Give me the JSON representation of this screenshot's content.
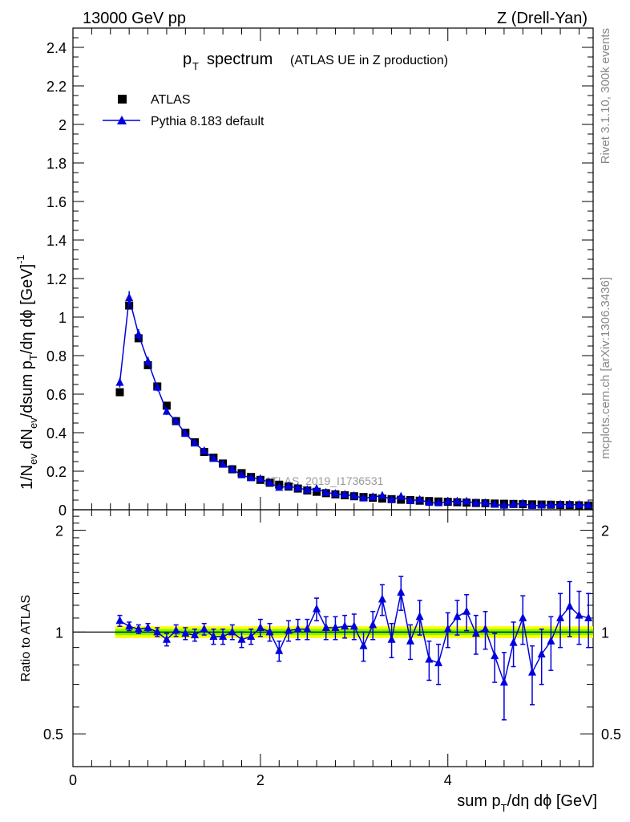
{
  "header": {
    "left": "13000 GeV pp",
    "right": "Z (Drell-Yan)"
  },
  "side_labels": {
    "rivet": "Rivet 3.1.10,  300k events",
    "mcplots": "mcplots.cern.ch [arXiv:1306.3436]"
  },
  "watermark": "ATLAS_2019_I1736531",
  "chart_data": [
    {
      "type": "scatter",
      "panel": "main",
      "title_main": "p",
      "title_sub": "T",
      "title_rest": "spectrum",
      "title_note": "(ATLAS UE in Z production)",
      "xlabel": "sum p_T/dη dϕ [GeV]",
      "ylabel": "1/N_ev dN_ev/dsum p_T/dη dϕ [GeV]^-1",
      "xlim": [
        0,
        5.55
      ],
      "ylim": [
        0,
        2.5
      ],
      "yticks": [
        "0",
        "0.2",
        "0.4",
        "0.6",
        "0.8",
        "1",
        "1.2",
        "1.4",
        "1.6",
        "1.8",
        "2",
        "2.2",
        "2.4"
      ],
      "legend": [
        {
          "name": "ATLAS",
          "marker": "square",
          "color": "#000000"
        },
        {
          "name": "Pythia 8.183 default",
          "marker": "triangle",
          "color": "#0000dd"
        }
      ],
      "x": [
        0.5,
        0.6,
        0.7,
        0.8,
        0.9,
        1.0,
        1.1,
        1.2,
        1.3,
        1.4,
        1.5,
        1.6,
        1.7,
        1.8,
        1.9,
        2.0,
        2.1,
        2.2,
        2.3,
        2.4,
        2.5,
        2.6,
        2.7,
        2.8,
        2.9,
        3.0,
        3.1,
        3.2,
        3.3,
        3.4,
        3.5,
        3.6,
        3.7,
        3.8,
        3.9,
        4.0,
        4.1,
        4.2,
        4.3,
        4.4,
        4.5,
        4.6,
        4.7,
        4.8,
        4.9,
        5.0,
        5.1,
        5.2,
        5.3,
        5.4,
        5.5
      ],
      "series": [
        {
          "name": "ATLAS",
          "values": [
            0.61,
            1.06,
            0.89,
            0.75,
            0.64,
            0.54,
            0.46,
            0.4,
            0.35,
            0.3,
            0.27,
            0.24,
            0.21,
            0.19,
            0.17,
            0.155,
            0.14,
            0.13,
            0.12,
            0.11,
            0.1,
            0.093,
            0.086,
            0.08,
            0.075,
            0.07,
            0.066,
            0.062,
            0.058,
            0.055,
            0.052,
            0.05,
            0.047,
            0.045,
            0.043,
            0.041,
            0.039,
            0.037,
            0.035,
            0.034,
            0.032,
            0.031,
            0.03,
            0.029,
            0.028,
            0.027,
            0.026,
            0.025,
            0.024,
            0.023,
            0.022
          ]
        },
        {
          "name": "Pythia 8.183 default",
          "values": [
            0.66,
            1.1,
            0.91,
            0.77,
            0.635,
            0.51,
            0.46,
            0.395,
            0.345,
            0.305,
            0.265,
            0.235,
            0.21,
            0.18,
            0.165,
            0.16,
            0.14,
            0.115,
            0.122,
            0.113,
            0.103,
            0.109,
            0.089,
            0.083,
            0.078,
            0.072,
            0.06,
            0.066,
            0.073,
            0.052,
            0.068,
            0.047,
            0.052,
            0.037,
            0.035,
            0.042,
            0.043,
            0.043,
            0.035,
            0.035,
            0.027,
            0.022,
            0.028,
            0.032,
            0.021,
            0.023,
            0.025,
            0.027,
            0.027,
            0.026,
            0.024
          ]
        }
      ],
      "mc_errors": [
        0.025,
        0.035,
        0.028,
        0.024,
        0.02,
        0.018,
        0.016,
        0.014,
        0.013,
        0.012,
        0.011,
        0.01,
        0.009,
        0.009,
        0.008,
        0.008,
        0.007,
        0.007,
        0.007,
        0.006,
        0.006,
        0.006,
        0.006,
        0.005,
        0.005,
        0.005,
        0.005,
        0.005,
        0.005,
        0.005,
        0.005,
        0.005,
        0.004,
        0.004,
        0.004,
        0.004,
        0.004,
        0.004,
        0.004,
        0.004,
        0.004,
        0.004,
        0.004,
        0.004,
        0.004,
        0.004,
        0.004,
        0.004,
        0.004,
        0.004,
        0.004
      ]
    },
    {
      "type": "scatter",
      "panel": "ratio",
      "ylabel": "Ratio to ATLAS",
      "xlabel": "sum p_T/dη dϕ [GeV]",
      "xlim": [
        0,
        5.55
      ],
      "ylim": [
        0.4,
        2.3
      ],
      "yscale": "log",
      "yticks": [
        "0.5",
        "1",
        "2"
      ],
      "xticks": [
        "0",
        "2",
        "4"
      ],
      "x": [
        0.5,
        0.6,
        0.7,
        0.8,
        0.9,
        1.0,
        1.1,
        1.2,
        1.3,
        1.4,
        1.5,
        1.6,
        1.7,
        1.8,
        1.9,
        2.0,
        2.1,
        2.2,
        2.3,
        2.4,
        2.5,
        2.6,
        2.7,
        2.8,
        2.9,
        3.0,
        3.1,
        3.2,
        3.3,
        3.4,
        3.5,
        3.6,
        3.7,
        3.8,
        3.9,
        4.0,
        4.1,
        4.2,
        4.3,
        4.4,
        4.5,
        4.6,
        4.7,
        4.8,
        4.9,
        5.0,
        5.1,
        5.2,
        5.3,
        5.4,
        5.5
      ],
      "ratio": [
        1.08,
        1.04,
        1.02,
        1.03,
        1.0,
        0.95,
        1.01,
        0.99,
        0.98,
        1.02,
        0.97,
        0.97,
        1.0,
        0.95,
        0.97,
        1.03,
        1.0,
        0.88,
        1.01,
        1.02,
        1.02,
        1.17,
        1.03,
        1.03,
        1.04,
        1.04,
        0.91,
        1.05,
        1.25,
        0.95,
        1.31,
        0.94,
        1.11,
        0.83,
        0.81,
        1.02,
        1.11,
        1.15,
        0.99,
        1.02,
        0.85,
        0.71,
        0.93,
        1.1,
        0.76,
        0.86,
        0.94,
        1.1,
        1.19,
        1.12,
        1.1
      ],
      "ratio_err": [
        0.04,
        0.03,
        0.03,
        0.03,
        0.03,
        0.04,
        0.04,
        0.04,
        0.04,
        0.04,
        0.05,
        0.05,
        0.05,
        0.05,
        0.05,
        0.06,
        0.06,
        0.06,
        0.07,
        0.07,
        0.07,
        0.09,
        0.08,
        0.08,
        0.08,
        0.09,
        0.09,
        0.1,
        0.13,
        0.11,
        0.15,
        0.11,
        0.13,
        0.11,
        0.11,
        0.12,
        0.13,
        0.14,
        0.13,
        0.13,
        0.14,
        0.16,
        0.14,
        0.18,
        0.15,
        0.16,
        0.17,
        0.2,
        0.22,
        0.2,
        0.2
      ],
      "data_band": {
        "inner": 0.02,
        "outer": 0.04,
        "inner_color": "#00ff00",
        "outer_color": "#ffff00"
      }
    }
  ]
}
